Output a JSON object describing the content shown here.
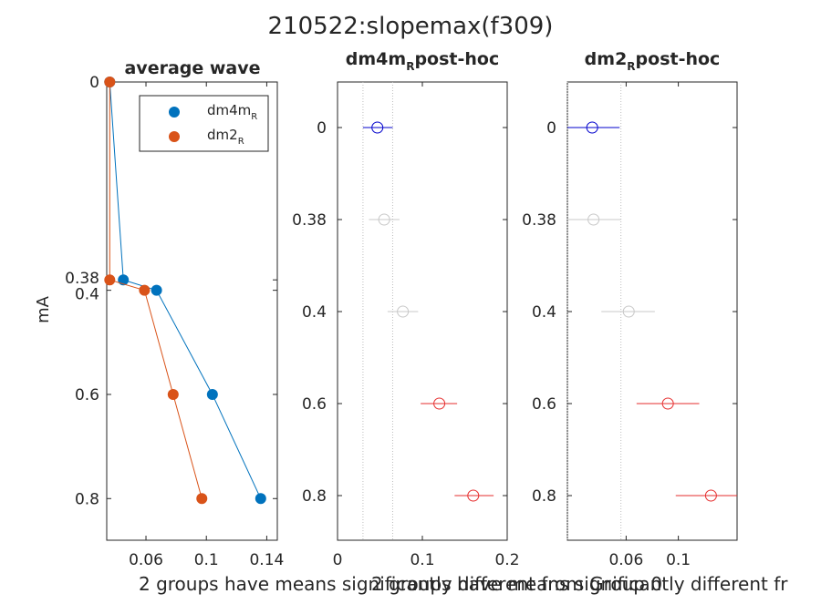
{
  "figure_title": "210522:slopemax(f309)",
  "footer_texts": [
    "2 groups have means significantly different from Group 0",
    "2 groups have means significantly different fr"
  ],
  "colors": {
    "dm4m": "#0072BD",
    "dm2": "#D95319",
    "sig_blue": "#0000CC",
    "sig_red": "#E62E2E",
    "nonsig_gray": "#C8C8C8"
  },
  "chart_data": [
    {
      "type": "line",
      "title": "average wave",
      "ylabel": "mA",
      "y_reversed": true,
      "ylim": [
        0,
        0.88
      ],
      "xlim": [
        0.034,
        0.147
      ],
      "xticks": [
        0.06,
        0.1,
        0.14
      ],
      "xtick_labels": [
        "0.06",
        "0.1",
        "0.14"
      ],
      "yticks": [
        0,
        0.38,
        0.4,
        0.6,
        0.8
      ],
      "ytick_labels": [
        "0",
        "0.38",
        "0.4",
        "0.6",
        "0.8"
      ],
      "legend": {
        "position": "top-right",
        "entries": [
          {
            "base": "dm4m",
            "sub": "R"
          },
          {
            "base": "dm2",
            "sub": "R"
          }
        ]
      },
      "series": [
        {
          "name": "dm4m_R",
          "x": [
            0.036,
            0.045,
            0.067,
            0.104,
            0.136
          ],
          "y": [
            0,
            0.38,
            0.4,
            0.6,
            0.8
          ]
        },
        {
          "name": "dm2_R",
          "x": [
            0.036,
            0.036,
            0.059,
            0.078,
            0.097
          ],
          "y": [
            0,
            0.38,
            0.4,
            0.6,
            0.8
          ]
        }
      ]
    },
    {
      "type": "scatter",
      "title_main": "dm4m",
      "title_sub": "R",
      "title_suffix": "post-hoc",
      "xlim": [
        0,
        0.2
      ],
      "xticks": [
        0,
        0.1,
        0.2
      ],
      "xtick_labels": [
        "0",
        "0.1",
        "0.2"
      ],
      "categories": [
        "0",
        "0.38",
        "0.4",
        "0.6",
        "0.8"
      ],
      "ref_lines": [
        0.03,
        0.065
      ],
      "points": [
        {
          "mean": 0.047,
          "lo": 0.03,
          "hi": 0.065,
          "status": "reference"
        },
        {
          "mean": 0.055,
          "lo": 0.037,
          "hi": 0.073,
          "status": "ns"
        },
        {
          "mean": 0.077,
          "lo": 0.059,
          "hi": 0.095,
          "status": "ns"
        },
        {
          "mean": 0.12,
          "lo": 0.098,
          "hi": 0.141,
          "status": "sig"
        },
        {
          "mean": 0.16,
          "lo": 0.138,
          "hi": 0.184,
          "status": "sig"
        }
      ]
    },
    {
      "type": "scatter",
      "title_main": "dm2",
      "title_sub": "R",
      "title_suffix": "post-hoc",
      "xlim": [
        0.015,
        0.145
      ],
      "xticks": [
        0.06,
        0.1
      ],
      "xtick_labels": [
        "0.06",
        "0.1"
      ],
      "categories": [
        "0",
        "0.38",
        "0.4",
        "0.6",
        "0.8"
      ],
      "ref_lines": [
        0.015,
        0.056
      ],
      "points": [
        {
          "mean": 0.034,
          "lo": 0.015,
          "hi": 0.055,
          "status": "reference"
        },
        {
          "mean": 0.035,
          "lo": 0.015,
          "hi": 0.056,
          "status": "ns"
        },
        {
          "mean": 0.062,
          "lo": 0.041,
          "hi": 0.082,
          "status": "ns"
        },
        {
          "mean": 0.092,
          "lo": 0.068,
          "hi": 0.116,
          "status": "sig"
        },
        {
          "mean": 0.125,
          "lo": 0.098,
          "hi": 0.15,
          "status": "sig"
        }
      ]
    }
  ]
}
